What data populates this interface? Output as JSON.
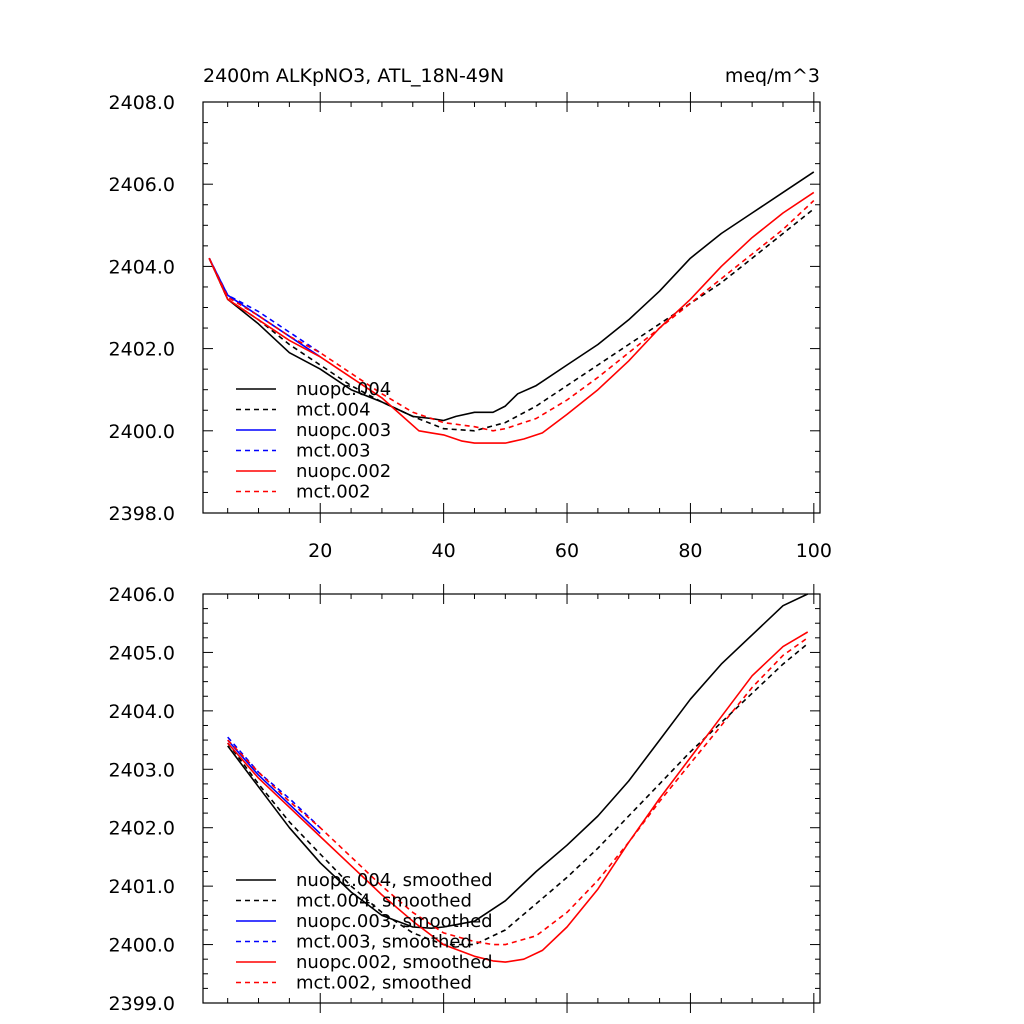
{
  "chart_data": [
    {
      "type": "line",
      "title": "2400m ALKpNO3, ATL_18N-49N",
      "units": "meq/m^3",
      "xlabel": "",
      "ylabel": "",
      "xlim": [
        1,
        101
      ],
      "ylim": [
        2398.0,
        2408.0
      ],
      "xticks": [
        20,
        40,
        60,
        80,
        100
      ],
      "xtick_labels": [
        "20",
        "40",
        "60",
        "80",
        "100"
      ],
      "show_xtick_labels": true,
      "yticks": [
        2398.0,
        2400.0,
        2402.0,
        2404.0,
        2406.0,
        2408.0
      ],
      "ytick_labels": [
        "2398.0",
        "2400.0",
        "2402.0",
        "2404.0",
        "2406.0",
        "2408.0"
      ],
      "legend_position": "bottom-left",
      "series": [
        {
          "name": "nuopc.004",
          "color": "#000000",
          "dash": "solid",
          "x": [
            2,
            5,
            10,
            15,
            20,
            25,
            30,
            35,
            38,
            40,
            42,
            45,
            48,
            50,
            52,
            55,
            60,
            65,
            70,
            75,
            80,
            85,
            90,
            95,
            100
          ],
          "y": [
            2404.2,
            2403.2,
            2402.6,
            2401.9,
            2401.5,
            2401.0,
            2400.7,
            2400.35,
            2400.3,
            2400.25,
            2400.35,
            2400.45,
            2400.45,
            2400.6,
            2400.9,
            2401.1,
            2401.6,
            2402.1,
            2402.7,
            2403.4,
            2404.2,
            2404.8,
            2405.3,
            2405.8,
            2406.3
          ]
        },
        {
          "name": "mct.004",
          "color": "#000000",
          "dash": "dashed",
          "x": [
            2,
            5,
            10,
            15,
            20,
            25,
            30,
            35,
            40,
            45,
            50,
            55,
            60,
            65,
            70,
            75,
            80,
            85,
            90,
            95,
            100
          ],
          "y": [
            2404.2,
            2403.2,
            2402.7,
            2402.1,
            2401.6,
            2401.1,
            2400.7,
            2400.35,
            2400.05,
            2400.0,
            2400.2,
            2400.6,
            2401.1,
            2401.6,
            2402.1,
            2402.6,
            2403.1,
            2403.6,
            2404.2,
            2404.8,
            2405.4
          ]
        },
        {
          "name": "nuopc.003",
          "color": "#0000ff",
          "dash": "solid",
          "x": [
            2,
            5,
            10,
            15,
            20
          ],
          "y": [
            2404.2,
            2403.3,
            2402.8,
            2402.3,
            2401.8
          ]
        },
        {
          "name": "mct.003",
          "color": "#0000ff",
          "dash": "dashed",
          "x": [
            2,
            5,
            10,
            15,
            20
          ],
          "y": [
            2404.2,
            2403.3,
            2402.9,
            2402.4,
            2401.9
          ]
        },
        {
          "name": "nuopc.002",
          "color": "#ff0000",
          "dash": "solid",
          "x": [
            2,
            5,
            10,
            15,
            20,
            25,
            30,
            33,
            36,
            38,
            40,
            43,
            45,
            48,
            50,
            53,
            56,
            60,
            65,
            70,
            75,
            80,
            85,
            90,
            95,
            100
          ],
          "y": [
            2404.2,
            2403.2,
            2402.7,
            2402.2,
            2401.8,
            2401.3,
            2400.8,
            2400.4,
            2400.0,
            2399.95,
            2399.9,
            2399.75,
            2399.7,
            2399.7,
            2399.7,
            2399.8,
            2399.95,
            2400.4,
            2401.0,
            2401.7,
            2402.5,
            2403.2,
            2404.0,
            2404.7,
            2405.3,
            2405.8
          ]
        },
        {
          "name": "mct.002",
          "color": "#ff0000",
          "dash": "dashed",
          "x": [
            2,
            5,
            10,
            15,
            20,
            25,
            30,
            35,
            40,
            45,
            48,
            50,
            55,
            60,
            65,
            70,
            75,
            80,
            85,
            90,
            95,
            100
          ],
          "y": [
            2404.2,
            2403.25,
            2402.8,
            2402.3,
            2401.9,
            2401.4,
            2400.9,
            2400.45,
            2400.2,
            2400.1,
            2400.0,
            2400.05,
            2400.3,
            2400.75,
            2401.3,
            2401.9,
            2402.5,
            2403.1,
            2403.7,
            2404.3,
            2404.9,
            2405.6
          ]
        }
      ]
    },
    {
      "type": "line",
      "title": "",
      "units": "",
      "xlabel": "",
      "ylabel": "",
      "xlim": [
        1,
        101
      ],
      "ylim": [
        2399.0,
        2406.0
      ],
      "xticks": [
        20,
        40,
        60,
        80,
        100
      ],
      "xtick_labels": [
        "20",
        "40",
        "60",
        "80",
        "100"
      ],
      "show_xtick_labels": false,
      "yticks": [
        2399.0,
        2400.0,
        2401.0,
        2402.0,
        2403.0,
        2404.0,
        2405.0,
        2406.0
      ],
      "ytick_labels": [
        "2399.0",
        "2400.0",
        "2401.0",
        "2402.0",
        "2403.0",
        "2404.0",
        "2405.0",
        "2406.0"
      ],
      "legend_position": "bottom-left",
      "series": [
        {
          "name": "nuopc.004, smoothed",
          "color": "#000000",
          "dash": "solid",
          "x": [
            5,
            10,
            15,
            20,
            25,
            30,
            35,
            38,
            40,
            45,
            50,
            55,
            60,
            65,
            70,
            75,
            80,
            85,
            90,
            95,
            99
          ],
          "y": [
            2403.4,
            2402.7,
            2402.0,
            2401.4,
            2400.9,
            2400.5,
            2400.3,
            2400.28,
            2400.3,
            2400.4,
            2400.75,
            2401.25,
            2401.7,
            2402.2,
            2402.8,
            2403.5,
            2404.2,
            2404.8,
            2405.3,
            2405.8,
            2406.0
          ]
        },
        {
          "name": "mct.004, smoothed",
          "color": "#000000",
          "dash": "dashed",
          "x": [
            5,
            10,
            15,
            20,
            25,
            30,
            35,
            40,
            45,
            50,
            55,
            60,
            65,
            70,
            75,
            80,
            85,
            90,
            95,
            99
          ],
          "y": [
            2403.45,
            2402.75,
            2402.1,
            2401.55,
            2401.0,
            2400.55,
            2400.2,
            2400.0,
            2400.0,
            2400.25,
            2400.7,
            2401.15,
            2401.65,
            2402.2,
            2402.75,
            2403.3,
            2403.8,
            2404.3,
            2404.8,
            2405.15
          ]
        },
        {
          "name": "nuopc.003, smoothed",
          "color": "#0000ff",
          "dash": "solid",
          "x": [
            5,
            10,
            15,
            20
          ],
          "y": [
            2403.5,
            2402.9,
            2402.4,
            2401.9
          ]
        },
        {
          "name": "mct.003, smoothed",
          "color": "#0000ff",
          "dash": "dashed",
          "x": [
            5,
            10,
            15,
            20
          ],
          "y": [
            2403.55,
            2402.95,
            2402.5,
            2402.0
          ]
        },
        {
          "name": "nuopc.002, smoothed",
          "color": "#ff0000",
          "dash": "solid",
          "x": [
            5,
            10,
            15,
            20,
            25,
            30,
            35,
            40,
            45,
            48,
            50,
            53,
            56,
            60,
            65,
            70,
            75,
            80,
            85,
            90,
            95,
            99
          ],
          "y": [
            2403.45,
            2402.85,
            2402.35,
            2401.85,
            2401.35,
            2400.85,
            2400.4,
            2400.0,
            2399.8,
            2399.72,
            2399.7,
            2399.75,
            2399.9,
            2400.3,
            2400.95,
            2401.75,
            2402.5,
            2403.2,
            2403.9,
            2404.6,
            2405.1,
            2405.35
          ]
        },
        {
          "name": "mct.002, smoothed",
          "color": "#ff0000",
          "dash": "dashed",
          "x": [
            5,
            10,
            15,
            20,
            25,
            30,
            35,
            40,
            45,
            48,
            50,
            55,
            60,
            65,
            70,
            75,
            80,
            85,
            90,
            95,
            99
          ],
          "y": [
            2403.5,
            2402.95,
            2402.45,
            2402.0,
            2401.5,
            2401.0,
            2400.55,
            2400.2,
            2400.05,
            2400.0,
            2400.0,
            2400.15,
            2400.55,
            2401.1,
            2401.75,
            2402.45,
            2403.1,
            2403.75,
            2404.4,
            2404.95,
            2405.25
          ]
        }
      ]
    }
  ]
}
